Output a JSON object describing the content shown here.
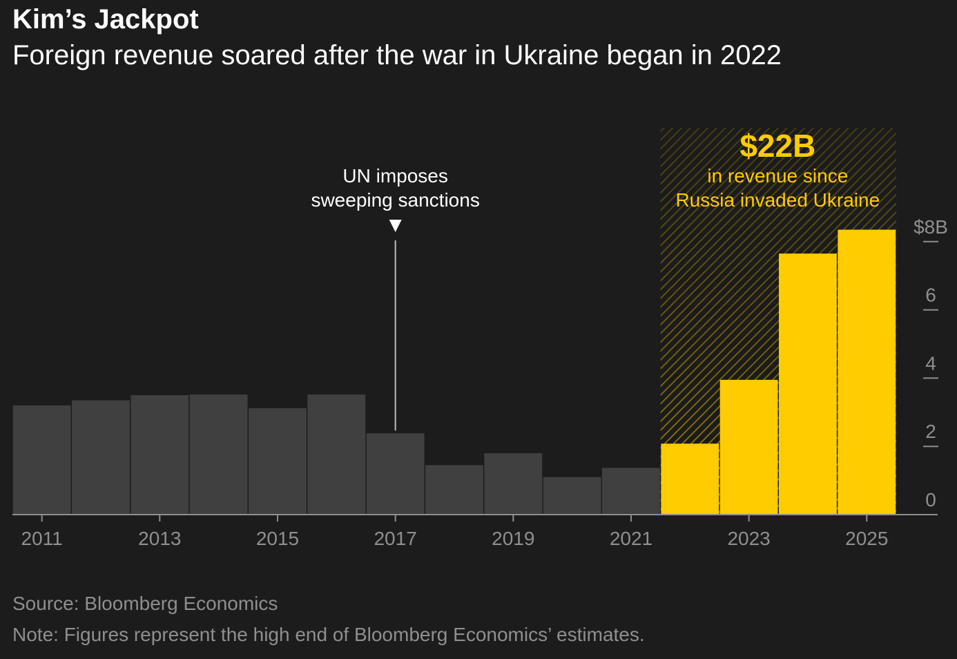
{
  "header": {
    "title": "Kim’s Jackpot",
    "subtitle": "Foreign revenue soared after the war in Ukraine began in 2022"
  },
  "footer": {
    "source": "Source: Bloomberg Economics",
    "note": "Note: Figures represent the high end of Bloomberg Economics’ estimates."
  },
  "colors": {
    "background": "#1c1c1c",
    "bar_pre_war": "#404040",
    "bar_post_war": "#ffcc00",
    "axis_text": "#8f8f8f",
    "annotation_text": "#ffffff",
    "highlight_text": "#ffcc00"
  },
  "chart_data": {
    "type": "bar",
    "x": [
      2011,
      2012,
      2013,
      2014,
      2015,
      2016,
      2017,
      2018,
      2019,
      2020,
      2021,
      2022,
      2023,
      2024,
      2025
    ],
    "values": [
      3.2,
      3.35,
      3.5,
      3.52,
      3.12,
      3.52,
      2.38,
      1.45,
      1.8,
      1.1,
      1.37,
      2.08,
      3.95,
      7.65,
      8.35
    ],
    "highlight_from": 2022,
    "xticks": [
      "2011",
      "2013",
      "2015",
      "2017",
      "2019",
      "2021",
      "2023",
      "2025"
    ],
    "yticks": [
      {
        "value": 0,
        "label": "0"
      },
      {
        "value": 2,
        "label": "2"
      },
      {
        "value": 4,
        "label": "4"
      },
      {
        "value": 6,
        "label": "6"
      },
      {
        "value": 8,
        "label": "$8B"
      }
    ],
    "ylim": [
      0,
      8.4
    ],
    "grid": false,
    "annotations": {
      "sanctions": {
        "x": 2017,
        "lines": [
          "UN imposes",
          "sweeping sanctions"
        ]
      },
      "revenue_total": {
        "value": "$22B",
        "lines": [
          "in revenue since",
          "Russia invaded Ukraine"
        ],
        "shaded_from": 2022
      }
    }
  }
}
